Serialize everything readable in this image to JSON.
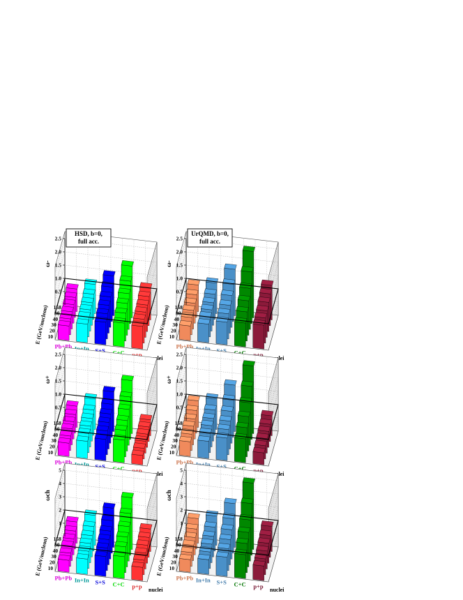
{
  "common": {
    "energies": [
      "158",
      "80",
      "40",
      "30",
      "20",
      "10"
    ],
    "energy_axis_label": "E (GeV/nucleon)",
    "nuclei_axis_label": "nuclei"
  },
  "chart_data": [
    {
      "type": "bar3d",
      "panel_label": [
        "HSD, b=0,",
        "full acc."
      ],
      "ylabel": "ω-",
      "ylim": [
        0,
        2.5
      ],
      "yticks": [
        "0.5",
        "1.0",
        "1.5",
        "2.0",
        "2.5"
      ],
      "series": [
        {
          "name": "Pb+Pb",
          "color": "#ff00ff",
          "values": [
            0.85,
            0.75,
            0.7,
            0.65,
            0.6,
            0.55
          ]
        },
        {
          "name": "In+In",
          "color": "#00ffff",
          "values": [
            1.1,
            0.95,
            0.85,
            0.8,
            0.75,
            0.7
          ]
        },
        {
          "name": "S+S",
          "color": "#0000ff",
          "values": [
            1.5,
            1.3,
            1.15,
            1.05,
            0.95,
            0.85
          ]
        },
        {
          "name": "C+C",
          "color": "#00ff00",
          "values": [
            1.95,
            1.6,
            1.35,
            1.2,
            1.05,
            0.9
          ]
        },
        {
          "name": "p+p",
          "color": "#ff3333",
          "values": [
            1.2,
            1.1,
            1.0,
            0.95,
            0.9,
            0.85
          ]
        }
      ]
    },
    {
      "type": "bar3d",
      "panel_label": [
        "UrQMD, b=0,",
        "full acc."
      ],
      "ylabel": "ω-",
      "ylim": [
        0,
        2.5
      ],
      "yticks": [
        "0.5",
        "1.0",
        "1.5",
        "2.0",
        "2.5"
      ],
      "series": [
        {
          "name": "Pb+Pb",
          "color": "#f08a5c",
          "values": [
            1.0,
            0.85,
            0.75,
            0.7,
            0.65,
            0.55
          ]
        },
        {
          "name": "In+In",
          "color": "#4a90c8",
          "values": [
            1.15,
            0.95,
            0.85,
            0.8,
            0.75,
            0.7
          ]
        },
        {
          "name": "S+S",
          "color": "#4a90c8",
          "values": [
            1.75,
            1.4,
            1.2,
            1.05,
            0.95,
            0.85
          ]
        },
        {
          "name": "C+C",
          "color": "#008800",
          "values": [
            2.5,
            1.95,
            1.55,
            1.3,
            1.1,
            0.9
          ]
        },
        {
          "name": "p+p",
          "color": "#8b1a3a",
          "values": [
            1.3,
            1.2,
            1.1,
            1.0,
            0.95,
            0.9
          ]
        }
      ]
    },
    {
      "type": "bar3d",
      "panel_label": [],
      "ylabel": "ω+",
      "ylim": [
        0,
        2.5
      ],
      "yticks": [
        "0.5",
        "1.0",
        "1.5",
        "2.0",
        "2.5"
      ],
      "series": [
        {
          "name": "Pb+Pb",
          "color": "#ff00ff",
          "values": [
            0.8,
            0.7,
            0.65,
            0.6,
            0.55,
            0.5
          ]
        },
        {
          "name": "In+In",
          "color": "#00ffff",
          "values": [
            1.15,
            0.95,
            0.85,
            0.78,
            0.72,
            0.65
          ]
        },
        {
          "name": "S+S",
          "color": "#0000ff",
          "values": [
            1.5,
            1.25,
            1.1,
            1.0,
            0.9,
            0.8
          ]
        },
        {
          "name": "C+C",
          "color": "#00ff00",
          "values": [
            2.0,
            1.6,
            1.35,
            1.15,
            1.0,
            0.85
          ]
        },
        {
          "name": "p+p",
          "color": "#ff3333",
          "values": [
            0.6,
            0.55,
            0.5,
            0.45,
            0.4,
            0.35
          ]
        }
      ]
    },
    {
      "type": "bar3d",
      "panel_label": [],
      "ylabel": "ω+",
      "ylim": [
        0,
        2.5
      ],
      "yticks": [
        "0.5",
        "1.0",
        "1.5",
        "2.0",
        "2.5"
      ],
      "series": [
        {
          "name": "Pb+Pb",
          "color": "#f08a5c",
          "values": [
            1.0,
            0.85,
            0.75,
            0.7,
            0.62,
            0.55
          ]
        },
        {
          "name": "In+In",
          "color": "#4a90c8",
          "values": [
            1.15,
            0.95,
            0.85,
            0.8,
            0.72,
            0.65
          ]
        },
        {
          "name": "S+S",
          "color": "#4a90c8",
          "values": [
            1.75,
            1.4,
            1.2,
            1.05,
            0.95,
            0.85
          ]
        },
        {
          "name": "C+C",
          "color": "#008800",
          "values": [
            2.55,
            2.0,
            1.6,
            1.3,
            1.1,
            0.9
          ]
        },
        {
          "name": "p+p",
          "color": "#8b1a3a",
          "values": [
            0.75,
            0.65,
            0.6,
            0.55,
            0.5,
            0.45
          ]
        }
      ]
    },
    {
      "type": "bar3d",
      "panel_label": [],
      "ylabel": "ωch",
      "ylim": [
        0,
        5
      ],
      "yticks": [
        "1",
        "2",
        "3",
        "4",
        "5"
      ],
      "series": [
        {
          "name": "Pb+Pb",
          "color": "#ff00ff",
          "values": [
            1.6,
            1.35,
            1.2,
            1.1,
            1.0,
            0.9
          ]
        },
        {
          "name": "In+In",
          "color": "#00ffff",
          "values": [
            2.25,
            1.85,
            1.6,
            1.45,
            1.3,
            1.15
          ]
        },
        {
          "name": "S+S",
          "color": "#0000ff",
          "values": [
            2.95,
            2.45,
            2.1,
            1.9,
            1.7,
            1.5
          ]
        },
        {
          "name": "C+C",
          "color": "#00ff00",
          "values": [
            3.9,
            3.15,
            2.6,
            2.25,
            1.95,
            1.65
          ]
        },
        {
          "name": "p+p",
          "color": "#ff3333",
          "values": [
            1.7,
            1.5,
            1.35,
            1.2,
            1.1,
            1.0
          ]
        }
      ]
    },
    {
      "type": "bar3d",
      "panel_label": [],
      "ylabel": "ωch",
      "ylim": [
        0,
        5
      ],
      "yticks": [
        "1",
        "2",
        "3",
        "4",
        "5"
      ],
      "series": [
        {
          "name": "Pb+Pb",
          "color": "#f08a5c",
          "values": [
            1.85,
            1.5,
            1.3,
            1.15,
            1.05,
            0.95
          ]
        },
        {
          "name": "In+In",
          "color": "#4a90c8",
          "values": [
            2.2,
            1.8,
            1.55,
            1.4,
            1.25,
            1.1
          ]
        },
        {
          "name": "S+S",
          "color": "#4a90c8",
          "values": [
            3.3,
            2.6,
            2.2,
            1.9,
            1.65,
            1.45
          ]
        },
        {
          "name": "C+C",
          "color": "#008800",
          "values": [
            5.0,
            3.9,
            3.1,
            2.6,
            2.2,
            1.8
          ]
        },
        {
          "name": "p+p",
          "color": "#8b1a3a",
          "values": [
            1.9,
            1.65,
            1.5,
            1.35,
            1.2,
            1.1
          ]
        }
      ]
    }
  ]
}
